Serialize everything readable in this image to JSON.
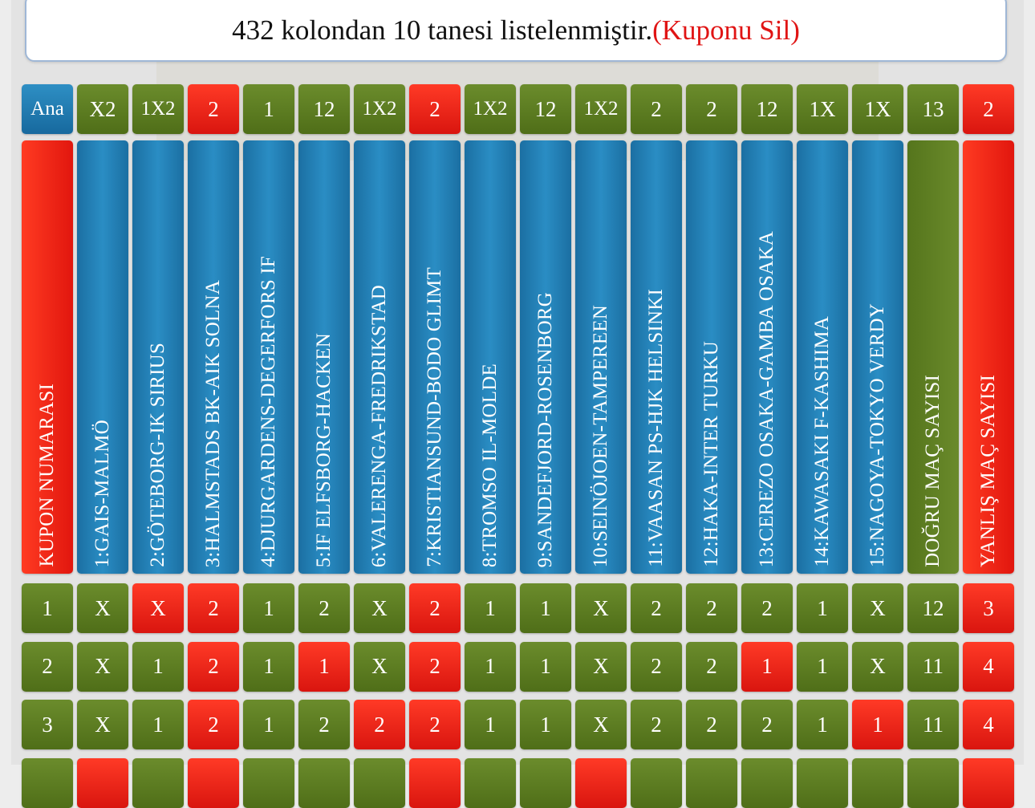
{
  "info": {
    "text": "432 kolondan 10 tanesi listelenmiştir.",
    "delete_label": "(Kuponu Sil)"
  },
  "picks": {
    "ana_label": "Ana",
    "items": [
      {
        "label": "X2",
        "color": "green"
      },
      {
        "label": "1X2",
        "color": "green"
      },
      {
        "label": "2",
        "color": "red"
      },
      {
        "label": "1",
        "color": "green"
      },
      {
        "label": "12",
        "color": "green"
      },
      {
        "label": "1X2",
        "color": "green"
      },
      {
        "label": "2",
        "color": "red"
      },
      {
        "label": "1X2",
        "color": "green"
      },
      {
        "label": "12",
        "color": "green"
      },
      {
        "label": "1X2",
        "color": "green"
      },
      {
        "label": "2",
        "color": "green"
      },
      {
        "label": "2",
        "color": "green"
      },
      {
        "label": "12",
        "color": "green"
      },
      {
        "label": "1X",
        "color": "green"
      },
      {
        "label": "1X",
        "color": "green"
      },
      {
        "label": "13",
        "color": "green"
      },
      {
        "label": "2",
        "color": "red"
      }
    ]
  },
  "headers": {
    "coupon_number": "KUPON NUMARASI",
    "matches": [
      "1:GAIS-MALMÖ",
      "2:GÖTEBORG-IK SIRIUS",
      "3:HALMSTADS BK-AIK SOLNA",
      "4:DJURGARDENS-DEGERFORS IF",
      "5:IF ELFSBORG-HACKEN",
      "6:VALERENGA-FREDRIKSTAD",
      "7:KRISTIANSUND-BODO GLIMT",
      "8:TROMSO IL-MOLDE",
      "9:SANDEFJORD-ROSENBORG",
      "10:SEINÖJOEN-TAMPEREEN",
      "11:VAASAN PS-HJK HELSINKI",
      "12:HAKA-INTER TURKU",
      "13:CEREZO OSAKA-GAMBA OSAKA",
      "14:KAWASAKI F-KASHIMA",
      "15:NAGOYA-TOKYO VERDY"
    ],
    "correct_count": "DOĞRU MAÇ SAYISI",
    "wrong_count": "YANLIŞ MAÇ SAYISI"
  },
  "rows": [
    {
      "no": "1",
      "cells": [
        {
          "v": "X",
          "c": "green"
        },
        {
          "v": "X",
          "c": "red"
        },
        {
          "v": "2",
          "c": "red"
        },
        {
          "v": "1",
          "c": "green"
        },
        {
          "v": "2",
          "c": "green"
        },
        {
          "v": "X",
          "c": "green"
        },
        {
          "v": "2",
          "c": "red"
        },
        {
          "v": "1",
          "c": "green"
        },
        {
          "v": "1",
          "c": "green"
        },
        {
          "v": "X",
          "c": "green"
        },
        {
          "v": "2",
          "c": "green"
        },
        {
          "v": "2",
          "c": "green"
        },
        {
          "v": "2",
          "c": "green"
        },
        {
          "v": "1",
          "c": "green"
        },
        {
          "v": "X",
          "c": "green"
        }
      ],
      "correct": "12",
      "wrong": "3"
    },
    {
      "no": "2",
      "cells": [
        {
          "v": "X",
          "c": "green"
        },
        {
          "v": "1",
          "c": "green"
        },
        {
          "v": "2",
          "c": "red"
        },
        {
          "v": "1",
          "c": "green"
        },
        {
          "v": "1",
          "c": "red"
        },
        {
          "v": "X",
          "c": "green"
        },
        {
          "v": "2",
          "c": "red"
        },
        {
          "v": "1",
          "c": "green"
        },
        {
          "v": "1",
          "c": "green"
        },
        {
          "v": "X",
          "c": "green"
        },
        {
          "v": "2",
          "c": "green"
        },
        {
          "v": "2",
          "c": "green"
        },
        {
          "v": "1",
          "c": "red"
        },
        {
          "v": "1",
          "c": "green"
        },
        {
          "v": "X",
          "c": "green"
        }
      ],
      "correct": "11",
      "wrong": "4"
    },
    {
      "no": "3",
      "cells": [
        {
          "v": "X",
          "c": "green"
        },
        {
          "v": "1",
          "c": "green"
        },
        {
          "v": "2",
          "c": "red"
        },
        {
          "v": "1",
          "c": "green"
        },
        {
          "v": "2",
          "c": "green"
        },
        {
          "v": "2",
          "c": "red"
        },
        {
          "v": "2",
          "c": "red"
        },
        {
          "v": "1",
          "c": "green"
        },
        {
          "v": "1",
          "c": "green"
        },
        {
          "v": "X",
          "c": "green"
        },
        {
          "v": "2",
          "c": "green"
        },
        {
          "v": "2",
          "c": "green"
        },
        {
          "v": "2",
          "c": "green"
        },
        {
          "v": "1",
          "c": "green"
        },
        {
          "v": "1",
          "c": "red"
        }
      ],
      "correct": "11",
      "wrong": "4"
    },
    {
      "no": "",
      "cells": [
        {
          "v": "",
          "c": "red"
        },
        {
          "v": "",
          "c": "green"
        },
        {
          "v": "",
          "c": "red"
        },
        {
          "v": "",
          "c": "green"
        },
        {
          "v": "",
          "c": "green"
        },
        {
          "v": "",
          "c": "green"
        },
        {
          "v": "",
          "c": "red"
        },
        {
          "v": "",
          "c": "green"
        },
        {
          "v": "",
          "c": "green"
        },
        {
          "v": "",
          "c": "red"
        },
        {
          "v": "",
          "c": "green"
        },
        {
          "v": "",
          "c": "green"
        },
        {
          "v": "",
          "c": "green"
        },
        {
          "v": "",
          "c": "green"
        },
        {
          "v": "",
          "c": "green"
        }
      ],
      "correct": "",
      "wrong": ""
    }
  ]
}
